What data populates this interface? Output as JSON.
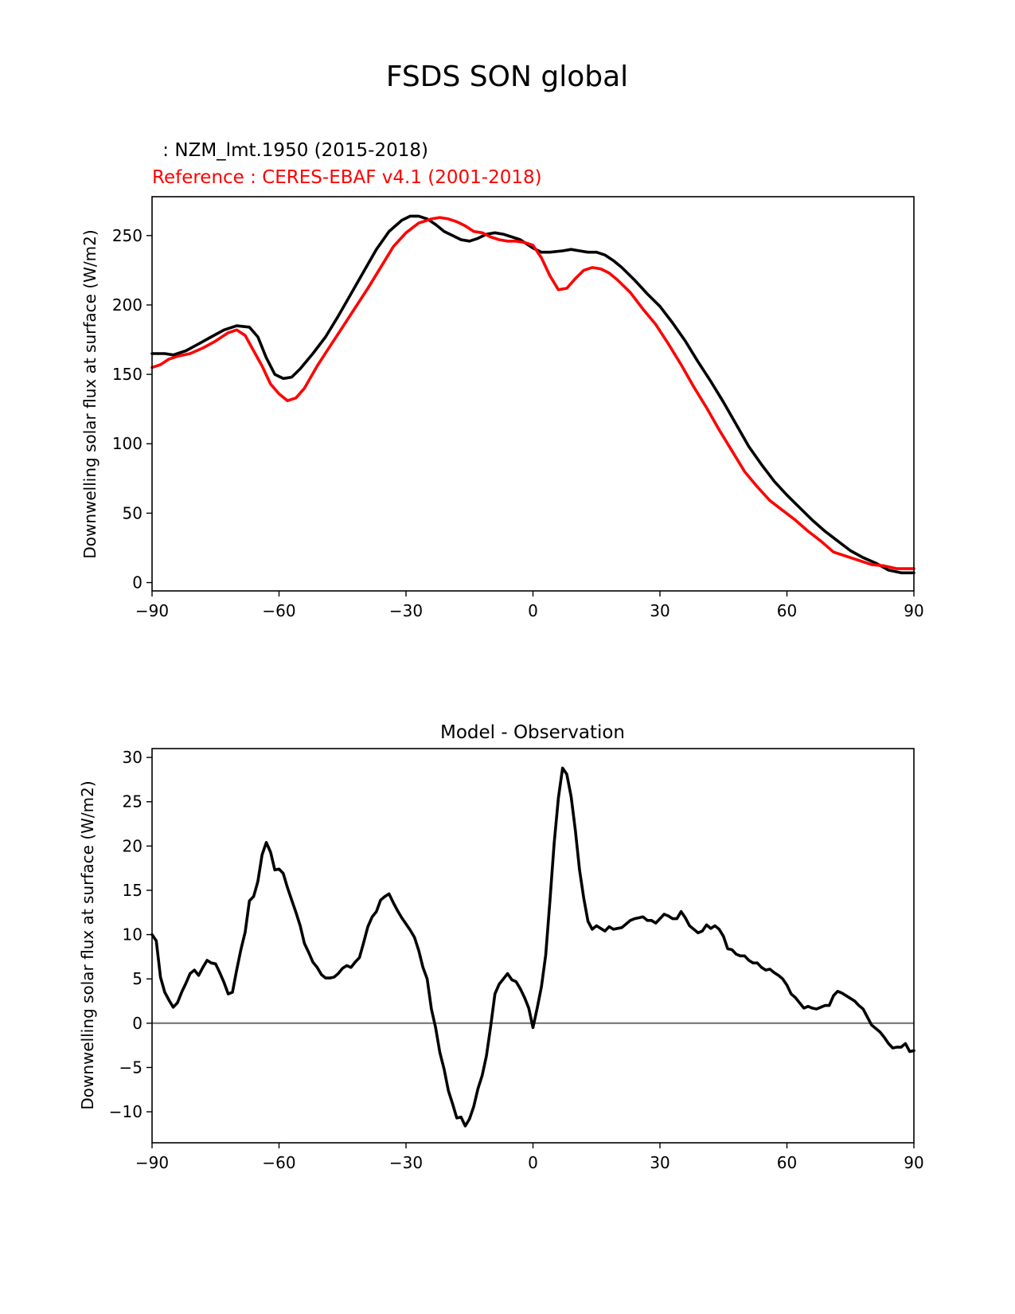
{
  "figure": {
    "title": "FSDS SON global"
  },
  "chart_data": [
    {
      "type": "line",
      "model_label": " : NZM_lmt.1950 (2015-2018)",
      "reference_label": "Reference : CERES-EBAF v4.1 (2001-2018)",
      "xlabel": "",
      "ylabel": "Downwelling solar flux at surface (W/m2)",
      "xlim": [
        -90,
        90
      ],
      "ylim": [
        -6,
        278
      ],
      "xticks": [
        -90,
        -60,
        -30,
        0,
        30,
        60,
        90
      ],
      "xtick_labels": [
        "−90",
        "−60",
        "−30",
        "0",
        "30",
        "60",
        "90"
      ],
      "yticks": [
        0,
        50,
        100,
        150,
        200,
        250
      ],
      "ytick_labels": [
        "0",
        "50",
        "100",
        "150",
        "200",
        "250"
      ],
      "series": [
        {
          "name": "NZM_lmt.1950 (2015-2018)",
          "color": "#000000",
          "x": [
            -90,
            -87,
            -85,
            -82,
            -79,
            -76,
            -73,
            -70,
            -67,
            -65,
            -63,
            -61,
            -59,
            -57,
            -55,
            -52,
            -49,
            -46,
            -43,
            -40,
            -37,
            -34,
            -31,
            -29,
            -27,
            -25,
            -23,
            -21,
            -19,
            -17,
            -15,
            -13,
            -11,
            -9,
            -7,
            -5,
            -3,
            -1,
            0,
            2,
            4,
            7,
            9,
            11,
            13,
            15,
            17,
            19,
            21,
            24,
            27,
            30,
            33,
            36,
            39,
            42,
            45,
            48,
            51,
            54,
            57,
            60,
            63,
            66,
            69,
            72,
            75,
            78,
            81,
            84,
            87,
            90
          ],
          "values": [
            165,
            165,
            164,
            167,
            172,
            177,
            182,
            185,
            184,
            177,
            162,
            150,
            147,
            148,
            154,
            165,
            177,
            192,
            208,
            224,
            240,
            253,
            261,
            264,
            264,
            262,
            258,
            253,
            250,
            247,
            246,
            248,
            251,
            252,
            251,
            249,
            247,
            243,
            241,
            238,
            238,
            239,
            240,
            239,
            238,
            238,
            236,
            232,
            227,
            218,
            208,
            199,
            187,
            174,
            159,
            145,
            130,
            114,
            98,
            85,
            73,
            63,
            54,
            45,
            37,
            30,
            23,
            18,
            14,
            9,
            7,
            7
          ]
        },
        {
          "name": "CERES-EBAF v4.1 (2001-2018)",
          "color": "#ff0000",
          "x": [
            -90,
            -88,
            -86,
            -84,
            -81,
            -78,
            -75,
            -72,
            -70,
            -68,
            -66,
            -64,
            -62,
            -60,
            -58,
            -56,
            -54,
            -51,
            -48,
            -45,
            -42,
            -39,
            -36,
            -33,
            -30,
            -27,
            -24,
            -22,
            -20,
            -18,
            -16,
            -14,
            -12,
            -10,
            -8,
            -6,
            -4,
            -2,
            0,
            2,
            4,
            6,
            8,
            10,
            12,
            14,
            16,
            18,
            20,
            23,
            26,
            29,
            32,
            35,
            38,
            41,
            44,
            47,
            50,
            53,
            56,
            59,
            62,
            65,
            68,
            71,
            74,
            77,
            80,
            83,
            86,
            88,
            90
          ],
          "values": [
            155,
            157,
            161,
            163,
            165,
            169,
            174,
            180,
            182,
            178,
            167,
            156,
            143,
            136,
            131,
            133,
            140,
            156,
            170,
            184,
            198,
            212,
            227,
            242,
            252,
            259,
            262,
            263,
            262,
            260,
            257,
            253,
            252,
            249,
            247,
            246,
            246,
            245,
            243,
            234,
            221,
            211,
            212,
            219,
            225,
            227,
            226,
            223,
            218,
            209,
            197,
            186,
            172,
            157,
            141,
            126,
            110,
            95,
            80,
            69,
            59,
            52,
            45,
            37,
            30,
            22,
            19,
            16,
            13,
            12,
            10,
            10,
            10
          ]
        }
      ]
    },
    {
      "type": "line",
      "title": "Model - Observation",
      "xlabel": "",
      "ylabel": "Downwelling solar flux at surface (W/m2)",
      "xlim": [
        -90,
        90
      ],
      "ylim": [
        -13.5,
        31
      ],
      "xticks": [
        -90,
        -60,
        -30,
        0,
        30,
        60,
        90
      ],
      "xtick_labels": [
        "−90",
        "−60",
        "−30",
        "0",
        "30",
        "60",
        "90"
      ],
      "yticks": [
        -10,
        -5,
        0,
        5,
        10,
        15,
        20,
        25,
        30
      ],
      "ytick_labels": [
        "−10",
        "−5",
        "0",
        "5",
        "10",
        "15",
        "20",
        "25",
        "30"
      ],
      "zero_line_color": "#808080",
      "series": [
        {
          "name": "Model - Observation",
          "color": "#000000",
          "x": [
            -90,
            -89,
            -88,
            -87,
            -86,
            -85,
            -84,
            -83,
            -82,
            -81,
            -80,
            -79,
            -78,
            -77,
            -76,
            -75,
            -74,
            -73,
            -72,
            -71,
            -70,
            -69,
            -68,
            -67,
            -66,
            -65,
            -64,
            -63,
            -62,
            -61,
            -60,
            -59,
            -58,
            -57,
            -56,
            -55,
            -54,
            -53,
            -52,
            -51,
            -50,
            -49,
            -48,
            -47,
            -46,
            -45,
            -44,
            -43,
            -42,
            -41,
            -40,
            -39,
            -38,
            -37,
            -36,
            -35,
            -34,
            -33,
            -32,
            -31,
            -30,
            -29,
            -28,
            -27,
            -26,
            -25,
            -24,
            -23,
            -22,
            -21,
            -20,
            -19,
            -18,
            -17,
            -16,
            -15,
            -14,
            -13,
            -12,
            -11,
            -10,
            -9,
            -8,
            -7,
            -6,
            -5,
            -4,
            -3,
            -2,
            -1,
            0,
            1,
            2,
            3,
            4,
            5,
            6,
            7,
            8,
            9,
            10,
            11,
            12,
            13,
            14,
            15,
            16,
            17,
            18,
            19,
            20,
            21,
            22,
            23,
            24,
            25,
            26,
            27,
            28,
            29,
            30,
            31,
            32,
            33,
            34,
            35,
            36,
            37,
            38,
            39,
            40,
            41,
            42,
            43,
            44,
            45,
            46,
            47,
            48,
            49,
            50,
            51,
            52,
            53,
            54,
            55,
            56,
            57,
            58,
            59,
            60,
            61,
            62,
            63,
            64,
            65,
            66,
            67,
            68,
            69,
            70,
            71,
            72,
            73,
            74,
            75,
            76,
            77,
            78,
            79,
            80,
            81,
            82,
            83,
            84,
            85,
            86,
            87,
            88,
            89,
            90
          ],
          "values": [
            10,
            9.3,
            5.2,
            3.5,
            2.6,
            1.8,
            2.3,
            3.5,
            4.5,
            5.6,
            6.0,
            5.4,
            6.3,
            7.1,
            6.8,
            6.7,
            5.7,
            4.6,
            3.3,
            3.5,
            6.0,
            8.3,
            10.3,
            13.8,
            14.3,
            16.0,
            19.0,
            20.4,
            19.3,
            17.3,
            17.4,
            16.9,
            15.3,
            13.9,
            12.5,
            11.0,
            9.0,
            8.0,
            6.9,
            6.3,
            5.5,
            5.1,
            5.1,
            5.2,
            5.6,
            6.2,
            6.5,
            6.3,
            6.9,
            7.4,
            9.1,
            10.9,
            12.0,
            12.6,
            13.9,
            14.3,
            14.6,
            13.6,
            12.7,
            11.9,
            11.2,
            10.5,
            9.7,
            8.2,
            6.3,
            5.0,
            1.6,
            -0.5,
            -3.3,
            -5.2,
            -7.6,
            -9.1,
            -10.7,
            -10.6,
            -11.6,
            -10.8,
            -9.4,
            -7.4,
            -5.9,
            -3.7,
            -0.4,
            3.3,
            4.4,
            5.0,
            5.6,
            4.9,
            4.7,
            3.9,
            2.9,
            1.7,
            -0.5,
            1.7,
            4.1,
            7.7,
            13.8,
            20.3,
            25.4,
            28.8,
            28.1,
            25.6,
            21.8,
            17.3,
            14.1,
            11.5,
            10.6,
            11.0,
            10.7,
            10.4,
            10.9,
            10.6,
            10.7,
            10.8,
            11.2,
            11.6,
            11.8,
            11.9,
            12.0,
            11.6,
            11.6,
            11.3,
            11.8,
            12.3,
            12.1,
            11.8,
            11.8,
            12.6,
            11.9,
            11.0,
            10.6,
            10.2,
            10.4,
            11.1,
            10.7,
            11.0,
            10.6,
            9.8,
            8.4,
            8.3,
            7.8,
            7.6,
            7.6,
            7.1,
            6.8,
            6.8,
            6.3,
            6.0,
            6.1,
            5.7,
            5.4,
            5.0,
            4.3,
            3.3,
            2.9,
            2.3,
            1.7,
            1.9,
            1.7,
            1.6,
            1.8,
            2.0,
            2.0,
            3.1,
            3.6,
            3.4,
            3.1,
            2.8,
            2.5,
            2.0,
            1.6,
            0.7,
            -0.2,
            -0.6,
            -1.0,
            -1.6,
            -2.3,
            -2.8,
            -2.7,
            -2.7,
            -2.3,
            -3.2,
            -3.1
          ]
        }
      ]
    }
  ]
}
